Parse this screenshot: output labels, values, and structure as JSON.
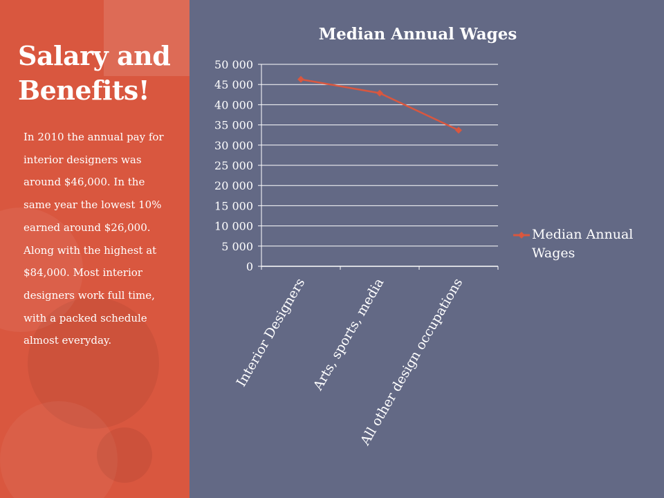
{
  "slide": {
    "title": "Salary and Benefits!",
    "body": "In 2010 the annual pay for interior designers was around $46,000.  In the same year the lowest 10% earned around $26,000.  Along with the highest at $84,000.  Most interior designers work full time, with a packed schedule almost everyday."
  },
  "colors": {
    "sidebar": "#d9573f",
    "background": "#636985",
    "series": "#d9573f",
    "gridline": "#ffffff",
    "text": "#ffffff"
  },
  "chart_data": {
    "type": "line",
    "title": "Median Annual Wages",
    "xlabel": "",
    "ylabel": "",
    "categories": [
      "Interior Designers",
      "Arts, sports, media",
      "All other design occupations"
    ],
    "series": [
      {
        "name": "Median Annual Wages",
        "values": [
          46280,
          42870,
          33690
        ]
      }
    ],
    "ylim": [
      0,
      50000
    ],
    "yticks": [
      0,
      5000,
      10000,
      15000,
      20000,
      25000,
      30000,
      35000,
      40000,
      45000,
      50000
    ],
    "ytick_labels": [
      "0",
      "5 000",
      "10 000",
      "15 000",
      "20 000",
      "25 000",
      "30 000",
      "35 000",
      "40 000",
      "45 000",
      "50 000"
    ],
    "grid": true,
    "legend": "right"
  }
}
